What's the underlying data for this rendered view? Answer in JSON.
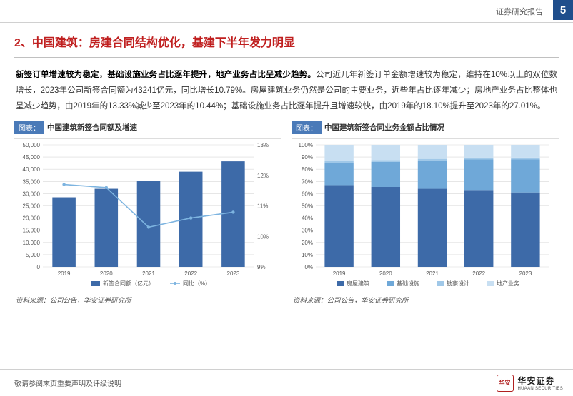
{
  "header": {
    "report_type": "证券研究报告",
    "page_number": "5"
  },
  "section": {
    "index": "2、",
    "company": "中国建筑：",
    "title_rest": "房建合同结构优化，基建下半年发力明显"
  },
  "body": {
    "lead_bold": "新签订单增速较为稳定，基础设施业务占比逐年提升，地产业务占比呈减少趋势。",
    "p1": "公司近几年新签订单金额增速较为稳定，维持在10%以上的双位数增长，2023年公司新签合同额为43241亿元，同比增长10.79%。房屋建筑业务仍然是公司的主要业务，近些年占比逐年减少；房地产业务占比整体也呈减少趋势，由2019年的13.33%减少至2023年的10.44%；基础设施业务占比逐年提升且增速较快，由2019年的18.10%提升至2023年的27.01%。"
  },
  "chart_left": {
    "box_label": "图表：",
    "title": "中国建筑新签合同额及增速",
    "type": "bar-line-combo",
    "categories": [
      "2019",
      "2020",
      "2021",
      "2022",
      "2023"
    ],
    "bar_values": [
      28500,
      32000,
      35300,
      39000,
      43241
    ],
    "line_values": [
      11.7,
      11.6,
      10.3,
      10.6,
      10.79
    ],
    "y1_min": 0,
    "y1_max": 50000,
    "y1_step": 5000,
    "y2_min": 9,
    "y2_max": 13,
    "y2_step": 1,
    "bar_color": "#3d6aa8",
    "line_color": "#7db4e0",
    "grid_color": "#d8d8d8",
    "axis_fontsize": 8,
    "legend_bar": "新签合同额（亿元）",
    "legend_line": "同比（%）",
    "source": "资料来源：公司公告，华安证券研究所"
  },
  "chart_right": {
    "box_label": "图表：",
    "title": "中国建筑新签合同业务金额占比情况",
    "type": "stacked-bar-100",
    "categories": [
      "2019",
      "2020",
      "2021",
      "2022",
      "2023"
    ],
    "series": [
      {
        "name": "房屋建筑",
        "color": "#3d6aa8",
        "values": [
          67.0,
          65.5,
          64.0,
          63.0,
          61.0
        ]
      },
      {
        "name": "基础设施",
        "color": "#6fa8d8",
        "values": [
          18.1,
          20.5,
          23.0,
          25.0,
          27.01
        ]
      },
      {
        "name": "勘察设计",
        "color": "#a0c8e8",
        "values": [
          1.57,
          1.5,
          1.5,
          1.5,
          1.55
        ]
      },
      {
        "name": "地产业务",
        "color": "#c8dff2",
        "values": [
          13.33,
          12.5,
          11.5,
          10.5,
          10.44
        ]
      }
    ],
    "y_min": 0,
    "y_max": 100,
    "y_step": 10,
    "grid_color": "#d8d8d8",
    "axis_fontsize": 8,
    "source": "资料来源：公司公告，华安证券研究所"
  },
  "footer": {
    "disclaimer": "敬请参阅末页重要声明及评级说明",
    "logo_cn": "华安证券",
    "logo_en": "HUAAN SECURITIES",
    "seal_text": "华安"
  }
}
